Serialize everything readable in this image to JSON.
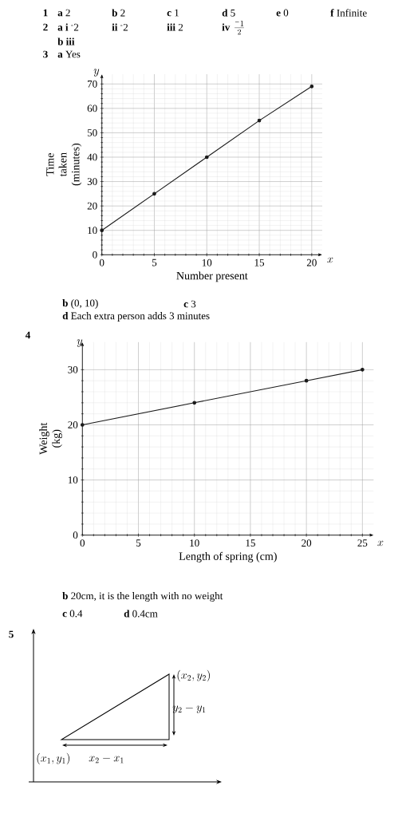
{
  "chart_data": [
    {
      "type": "line",
      "xlabel": "Number present",
      "ylabel": "Time taken (minutes)",
      "x": [
        0,
        5,
        10,
        15,
        20
      ],
      "series": [
        {
          "color": "#1a1a1a",
          "values": [
            10,
            25,
            40,
            55,
            69
          ]
        }
      ],
      "xlim": [
        0,
        21
      ],
      "ylim": [
        0,
        74
      ],
      "xticks": [
        0,
        5,
        10,
        15,
        20
      ],
      "yticks": [
        0,
        10,
        20,
        30,
        40,
        50,
        60,
        70
      ],
      "grid": true,
      "marker": "circle",
      "annotations": [
        "1",
        "**a** 2",
        "**b** 2",
        "**c** 1",
        "**d** 5",
        "**e** 0",
        "**f** Infinite",
        "2",
        "**a** **i** $^{-}$2",
        "**ii** $^{-}$2",
        "**iii** 2",
        "**iv**",
        "\\frac{^{-}1}{2}",
        "**b** **iii**",
        "3",
        "**a** Yes",
        "y",
        "x",
        "**b** (0, 10)",
        "**c** 3",
        "**d** Each extra person adds 3 minutes"
      ]
    },
    {
      "type": "line",
      "xlabel": "Length of spring (cm)",
      "ylabel": "Weight (kg)",
      "x": [
        0,
        10,
        20,
        25
      ],
      "series": [
        {
          "color": "#1a1a1a",
          "values": [
            20,
            24,
            28,
            30
          ]
        }
      ],
      "xlim": [
        0,
        26
      ],
      "ylim": [
        0,
        35
      ],
      "xticks": [
        0,
        5,
        10,
        15,
        20,
        25
      ],
      "yticks": [
        0,
        10,
        20,
        30
      ],
      "grid": true,
      "marker": "circle",
      "annotations": [
        "4",
        "y",
        "x",
        "**b** 20cm, it is the length with no weight",
        "**c** 0.4",
        "**d** 0.4cm",
        "5",
        "(x_{2},y_{2})",
        "y_{2}-y_{1}",
        "(x_{1},y_{1})",
        "x_{2}-x_{1}"
      ]
    }
  ]
}
